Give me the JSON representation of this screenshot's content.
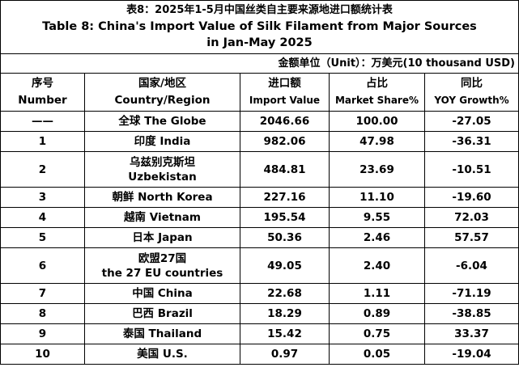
{
  "title": {
    "zh": "表8：2025年1-5月中国丝类自主要来源地进口额统计表",
    "en_line1": "Table 8: China's Import Value of Silk Filament from Major Sources",
    "en_line2": "in Jan-May 2025"
  },
  "unit": "金额单位（Unit）：万美元(10 thousand USD)",
  "headers": [
    {
      "zh": "序号",
      "en": "Number"
    },
    {
      "zh": "国家/地区",
      "en": "Country/Region"
    },
    {
      "zh": "进口额",
      "en": "Import Value"
    },
    {
      "zh": "占比",
      "en": "Market Share%"
    },
    {
      "zh": "同比",
      "en": "YOY Growth%"
    }
  ],
  "rows": [
    {
      "no": "——",
      "region1": "全球  The Globe",
      "region2": "",
      "import": "2046.66",
      "share": "100.00",
      "yoy": "-27.05"
    },
    {
      "no": "1",
      "region1": "印度 India",
      "region2": "",
      "import": "982.06",
      "share": "47.98",
      "yoy": "-36.31"
    },
    {
      "no": "2",
      "region1": "乌兹别克斯坦",
      "region2": "Uzbekistan",
      "import": "484.81",
      "share": "23.69",
      "yoy": "-10.51"
    },
    {
      "no": "3",
      "region1": "朝鲜  North Korea",
      "region2": "",
      "import": "227.16",
      "share": "11.10",
      "yoy": "-19.60"
    },
    {
      "no": "4",
      "region1": "越南 Vietnam",
      "region2": "",
      "import": "195.54",
      "share": "9.55",
      "yoy": "72.03"
    },
    {
      "no": "5",
      "region1": "日本 Japan",
      "region2": "",
      "import": "50.36",
      "share": "2.46",
      "yoy": "57.57"
    },
    {
      "no": "6",
      "region1": "欧盟27国",
      "region2": "the 27 EU countries",
      "import": "49.05",
      "share": "2.40",
      "yoy": "-6.04"
    },
    {
      "no": "7",
      "region1": "中国 China",
      "region2": "",
      "import": "22.68",
      "share": "1.11",
      "yoy": "-71.19"
    },
    {
      "no": "8",
      "region1": "巴西 Brazil",
      "region2": "",
      "import": "18.29",
      "share": "0.89",
      "yoy": "-38.85"
    },
    {
      "no": "9",
      "region1": "泰国 Thailand",
      "region2": "",
      "import": "15.42",
      "share": "0.75",
      "yoy": "33.37"
    },
    {
      "no": "10",
      "region1": "美国 U.S.",
      "region2": "",
      "import": "0.97",
      "share": "0.05",
      "yoy": "-19.04"
    }
  ]
}
